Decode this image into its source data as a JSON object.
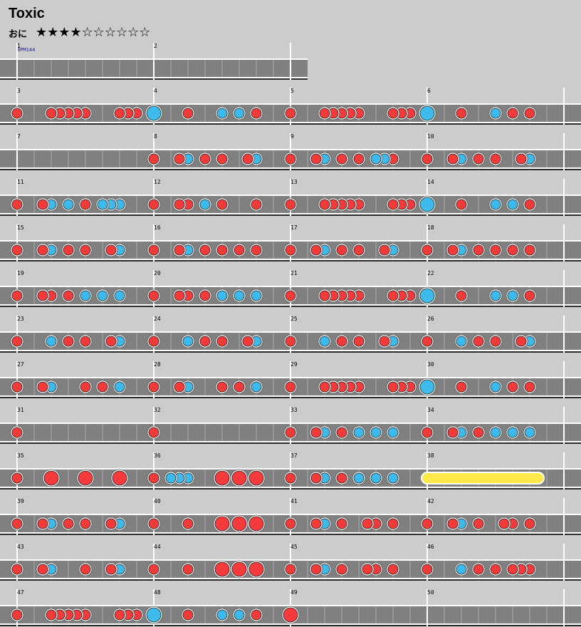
{
  "song": {
    "title": "Toxic",
    "difficulty": "おに",
    "stars": "★★★★☆☆☆☆☆☆",
    "bpm_label": "BPM144"
  },
  "colors": {
    "don": "#f43a3a",
    "ka": "#3fbaec",
    "roll": "#ffe94a",
    "lane": "#808080",
    "background": "#cccccc"
  },
  "chart_data": {
    "type": "taiko-chart",
    "subdivisions_per_measure": 16,
    "note_legend": {
      "d": "don (small)",
      "k": "ka (small)",
      "D": "don (big)",
      "K": "ka (big)",
      "r": "roll"
    },
    "measures": [
      {
        "n": 1,
        "notes": []
      },
      {
        "n": 2,
        "notes": []
      },
      {
        "n": 3,
        "notes": [
          [
            0,
            "d"
          ],
          [
            4,
            "d"
          ],
          [
            5,
            "d"
          ],
          [
            6,
            "d"
          ],
          [
            7,
            "d"
          ],
          [
            8,
            "d"
          ],
          [
            12,
            "d"
          ],
          [
            13,
            "d"
          ],
          [
            14,
            "d"
          ]
        ]
      },
      {
        "n": 4,
        "notes": [
          [
            0,
            "K"
          ],
          [
            4,
            "d"
          ],
          [
            8,
            "k"
          ],
          [
            10,
            "k"
          ],
          [
            12,
            "d"
          ]
        ]
      },
      {
        "n": 5,
        "notes": [
          [
            0,
            "d"
          ],
          [
            4,
            "d"
          ],
          [
            5,
            "d"
          ],
          [
            6,
            "d"
          ],
          [
            7,
            "d"
          ],
          [
            8,
            "d"
          ],
          [
            12,
            "d"
          ],
          [
            13,
            "d"
          ],
          [
            14,
            "d"
          ]
        ]
      },
      {
        "n": 6,
        "notes": [
          [
            0,
            "K"
          ],
          [
            4,
            "d"
          ],
          [
            8,
            "k"
          ],
          [
            10,
            "d"
          ],
          [
            12,
            "d"
          ]
        ]
      },
      {
        "n": 7,
        "notes": []
      },
      {
        "n": 8,
        "notes": [
          [
            0,
            "d"
          ],
          [
            3,
            "d"
          ],
          [
            4,
            "k"
          ],
          [
            6,
            "d"
          ],
          [
            8,
            "d"
          ],
          [
            11,
            "d"
          ],
          [
            12,
            "k"
          ]
        ]
      },
      {
        "n": 9,
        "notes": [
          [
            0,
            "d"
          ],
          [
            3,
            "d"
          ],
          [
            4,
            "k"
          ],
          [
            6,
            "d"
          ],
          [
            8,
            "d"
          ],
          [
            10,
            "k"
          ],
          [
            11,
            "k"
          ],
          [
            12,
            "d"
          ]
        ]
      },
      {
        "n": 10,
        "notes": [
          [
            0,
            "d"
          ],
          [
            3,
            "d"
          ],
          [
            4,
            "k"
          ],
          [
            6,
            "d"
          ],
          [
            8,
            "d"
          ],
          [
            11,
            "d"
          ],
          [
            12,
            "k"
          ]
        ]
      },
      {
        "n": 11,
        "notes": [
          [
            0,
            "d"
          ],
          [
            3,
            "d"
          ],
          [
            4,
            "k"
          ],
          [
            6,
            "k"
          ],
          [
            8,
            "d"
          ],
          [
            10,
            "k"
          ],
          [
            11,
            "k"
          ],
          [
            12,
            "k"
          ]
        ]
      },
      {
        "n": 12,
        "notes": [
          [
            0,
            "d"
          ],
          [
            3,
            "d"
          ],
          [
            4,
            "d"
          ],
          [
            6,
            "k"
          ],
          [
            8,
            "d"
          ],
          [
            12,
            "d"
          ]
        ]
      },
      {
        "n": 13,
        "notes": [
          [
            0,
            "d"
          ],
          [
            4,
            "d"
          ],
          [
            5,
            "d"
          ],
          [
            6,
            "d"
          ],
          [
            7,
            "d"
          ],
          [
            8,
            "d"
          ],
          [
            12,
            "d"
          ],
          [
            13,
            "d"
          ],
          [
            14,
            "d"
          ]
        ]
      },
      {
        "n": 14,
        "notes": [
          [
            0,
            "K"
          ],
          [
            4,
            "d"
          ],
          [
            8,
            "k"
          ],
          [
            10,
            "k"
          ],
          [
            12,
            "d"
          ]
        ]
      },
      {
        "n": 15,
        "notes": [
          [
            0,
            "d"
          ],
          [
            3,
            "d"
          ],
          [
            4,
            "k"
          ],
          [
            6,
            "d"
          ],
          [
            8,
            "d"
          ],
          [
            11,
            "d"
          ],
          [
            12,
            "k"
          ]
        ]
      },
      {
        "n": 16,
        "notes": [
          [
            0,
            "d"
          ],
          [
            3,
            "d"
          ],
          [
            4,
            "k"
          ],
          [
            6,
            "d"
          ],
          [
            8,
            "d"
          ],
          [
            10,
            "d"
          ],
          [
            12,
            "d"
          ]
        ]
      },
      {
        "n": 17,
        "notes": [
          [
            0,
            "d"
          ],
          [
            3,
            "d"
          ],
          [
            4,
            "k"
          ],
          [
            6,
            "d"
          ],
          [
            8,
            "d"
          ],
          [
            11,
            "d"
          ],
          [
            12,
            "k"
          ]
        ]
      },
      {
        "n": 18,
        "notes": [
          [
            0,
            "d"
          ],
          [
            3,
            "d"
          ],
          [
            4,
            "k"
          ],
          [
            6,
            "d"
          ],
          [
            8,
            "d"
          ],
          [
            10,
            "d"
          ],
          [
            12,
            "d"
          ]
        ]
      },
      {
        "n": 19,
        "notes": [
          [
            0,
            "d"
          ],
          [
            3,
            "d"
          ],
          [
            4,
            "d"
          ],
          [
            6,
            "d"
          ],
          [
            8,
            "k"
          ],
          [
            10,
            "k"
          ],
          [
            12,
            "k"
          ]
        ]
      },
      {
        "n": 20,
        "notes": [
          [
            0,
            "d"
          ],
          [
            3,
            "d"
          ],
          [
            4,
            "d"
          ],
          [
            6,
            "d"
          ],
          [
            8,
            "k"
          ],
          [
            10,
            "k"
          ],
          [
            12,
            "k"
          ]
        ]
      },
      {
        "n": 21,
        "notes": [
          [
            0,
            "d"
          ],
          [
            4,
            "d"
          ],
          [
            5,
            "d"
          ],
          [
            6,
            "d"
          ],
          [
            7,
            "d"
          ],
          [
            8,
            "d"
          ],
          [
            12,
            "d"
          ],
          [
            13,
            "d"
          ],
          [
            14,
            "d"
          ]
        ]
      },
      {
        "n": 22,
        "notes": [
          [
            0,
            "K"
          ],
          [
            4,
            "d"
          ],
          [
            8,
            "k"
          ],
          [
            10,
            "k"
          ],
          [
            12,
            "d"
          ]
        ]
      },
      {
        "n": 23,
        "notes": [
          [
            0,
            "d"
          ],
          [
            4,
            "k"
          ],
          [
            6,
            "d"
          ],
          [
            8,
            "d"
          ],
          [
            11,
            "d"
          ],
          [
            12,
            "k"
          ]
        ]
      },
      {
        "n": 24,
        "notes": [
          [
            0,
            "d"
          ],
          [
            4,
            "k"
          ],
          [
            6,
            "d"
          ],
          [
            8,
            "d"
          ],
          [
            11,
            "d"
          ],
          [
            12,
            "k"
          ]
        ]
      },
      {
        "n": 25,
        "notes": [
          [
            0,
            "d"
          ],
          [
            4,
            "k"
          ],
          [
            6,
            "d"
          ],
          [
            8,
            "d"
          ],
          [
            11,
            "d"
          ],
          [
            12,
            "k"
          ]
        ]
      },
      {
        "n": 26,
        "notes": [
          [
            0,
            "d"
          ],
          [
            4,
            "k"
          ],
          [
            6,
            "d"
          ],
          [
            8,
            "d"
          ],
          [
            11,
            "d"
          ],
          [
            12,
            "k"
          ]
        ]
      },
      {
        "n": 27,
        "notes": [
          [
            0,
            "d"
          ],
          [
            3,
            "d"
          ],
          [
            4,
            "k"
          ],
          [
            8,
            "d"
          ],
          [
            10,
            "d"
          ],
          [
            12,
            "k"
          ]
        ]
      },
      {
        "n": 28,
        "notes": [
          [
            0,
            "d"
          ],
          [
            3,
            "d"
          ],
          [
            4,
            "k"
          ],
          [
            8,
            "d"
          ],
          [
            10,
            "d"
          ],
          [
            12,
            "k"
          ]
        ]
      },
      {
        "n": 29,
        "notes": [
          [
            0,
            "d"
          ],
          [
            4,
            "d"
          ],
          [
            5,
            "d"
          ],
          [
            6,
            "d"
          ],
          [
            7,
            "d"
          ],
          [
            8,
            "d"
          ],
          [
            12,
            "d"
          ],
          [
            13,
            "d"
          ],
          [
            14,
            "d"
          ]
        ]
      },
      {
        "n": 30,
        "notes": [
          [
            0,
            "K"
          ],
          [
            4,
            "d"
          ],
          [
            8,
            "k"
          ],
          [
            10,
            "d"
          ],
          [
            12,
            "d"
          ]
        ]
      },
      {
        "n": 31,
        "notes": [
          [
            0,
            "d"
          ]
        ]
      },
      {
        "n": 32,
        "notes": [
          [
            0,
            "d"
          ]
        ]
      },
      {
        "n": 33,
        "notes": [
          [
            0,
            "d"
          ],
          [
            3,
            "d"
          ],
          [
            4,
            "k"
          ],
          [
            6,
            "d"
          ],
          [
            8,
            "k"
          ],
          [
            10,
            "k"
          ],
          [
            12,
            "k"
          ]
        ]
      },
      {
        "n": 34,
        "notes": [
          [
            0,
            "d"
          ],
          [
            3,
            "d"
          ],
          [
            4,
            "k"
          ],
          [
            6,
            "d"
          ],
          [
            8,
            "k"
          ],
          [
            10,
            "k"
          ],
          [
            12,
            "k"
          ]
        ]
      },
      {
        "n": 35,
        "notes": [
          [
            0,
            "d"
          ],
          [
            4,
            "D"
          ],
          [
            8,
            "D"
          ],
          [
            12,
            "D"
          ]
        ]
      },
      {
        "n": 36,
        "notes": [
          [
            0,
            "d"
          ],
          [
            2,
            "k"
          ],
          [
            3,
            "k"
          ],
          [
            4,
            "k"
          ],
          [
            8,
            "D"
          ],
          [
            10,
            "D"
          ],
          [
            12,
            "D"
          ]
        ]
      },
      {
        "n": 37,
        "notes": [
          [
            0,
            "d"
          ],
          [
            3,
            "d"
          ],
          [
            4,
            "k"
          ],
          [
            6,
            "d"
          ],
          [
            8,
            "k"
          ],
          [
            10,
            "k"
          ],
          [
            12,
            "k"
          ]
        ]
      },
      {
        "n": 38,
        "notes": [
          [
            0,
            "r",
            13
          ]
        ]
      },
      {
        "n": 39,
        "notes": [
          [
            0,
            "d"
          ],
          [
            3,
            "d"
          ],
          [
            4,
            "k"
          ],
          [
            6,
            "d"
          ],
          [
            8,
            "d"
          ],
          [
            11,
            "d"
          ],
          [
            12,
            "k"
          ]
        ]
      },
      {
        "n": 40,
        "notes": [
          [
            0,
            "d"
          ],
          [
            4,
            "d"
          ],
          [
            8,
            "D"
          ],
          [
            10,
            "D"
          ],
          [
            12,
            "D"
          ]
        ]
      },
      {
        "n": 41,
        "notes": [
          [
            0,
            "d"
          ],
          [
            3,
            "d"
          ],
          [
            4,
            "k"
          ],
          [
            6,
            "d"
          ],
          [
            9,
            "d"
          ],
          [
            10,
            "d"
          ],
          [
            12,
            "d"
          ]
        ]
      },
      {
        "n": 42,
        "notes": [
          [
            0,
            "d"
          ],
          [
            3,
            "d"
          ],
          [
            4,
            "k"
          ],
          [
            6,
            "d"
          ],
          [
            9,
            "d"
          ],
          [
            10,
            "d"
          ],
          [
            12,
            "d"
          ]
        ]
      },
      {
        "n": 43,
        "notes": [
          [
            0,
            "d"
          ],
          [
            3,
            "d"
          ],
          [
            4,
            "k"
          ],
          [
            8,
            "d"
          ],
          [
            11,
            "d"
          ],
          [
            12,
            "k"
          ]
        ]
      },
      {
        "n": 44,
        "notes": [
          [
            0,
            "d"
          ],
          [
            4,
            "d"
          ],
          [
            8,
            "D"
          ],
          [
            10,
            "D"
          ],
          [
            12,
            "D"
          ]
        ]
      },
      {
        "n": 45,
        "notes": [
          [
            0,
            "d"
          ],
          [
            3,
            "d"
          ],
          [
            4,
            "k"
          ],
          [
            6,
            "d"
          ],
          [
            9,
            "d"
          ],
          [
            10,
            "d"
          ],
          [
            12,
            "d"
          ]
        ]
      },
      {
        "n": 46,
        "notes": [
          [
            0,
            "d"
          ],
          [
            4,
            "k"
          ],
          [
            6,
            "d"
          ],
          [
            8,
            "d"
          ],
          [
            10,
            "d"
          ],
          [
            11,
            "d"
          ],
          [
            12,
            "d"
          ]
        ]
      },
      {
        "n": 47,
        "notes": [
          [
            0,
            "d"
          ],
          [
            4,
            "d"
          ],
          [
            5,
            "d"
          ],
          [
            6,
            "d"
          ],
          [
            7,
            "d"
          ],
          [
            8,
            "d"
          ],
          [
            12,
            "d"
          ],
          [
            13,
            "d"
          ],
          [
            14,
            "d"
          ]
        ]
      },
      {
        "n": 48,
        "notes": [
          [
            0,
            "K"
          ],
          [
            4,
            "d"
          ],
          [
            8,
            "k"
          ],
          [
            10,
            "k"
          ],
          [
            12,
            "d"
          ]
        ]
      },
      {
        "n": 49,
        "notes": [
          [
            0,
            "D"
          ]
        ]
      },
      {
        "n": 50,
        "notes": []
      }
    ]
  }
}
